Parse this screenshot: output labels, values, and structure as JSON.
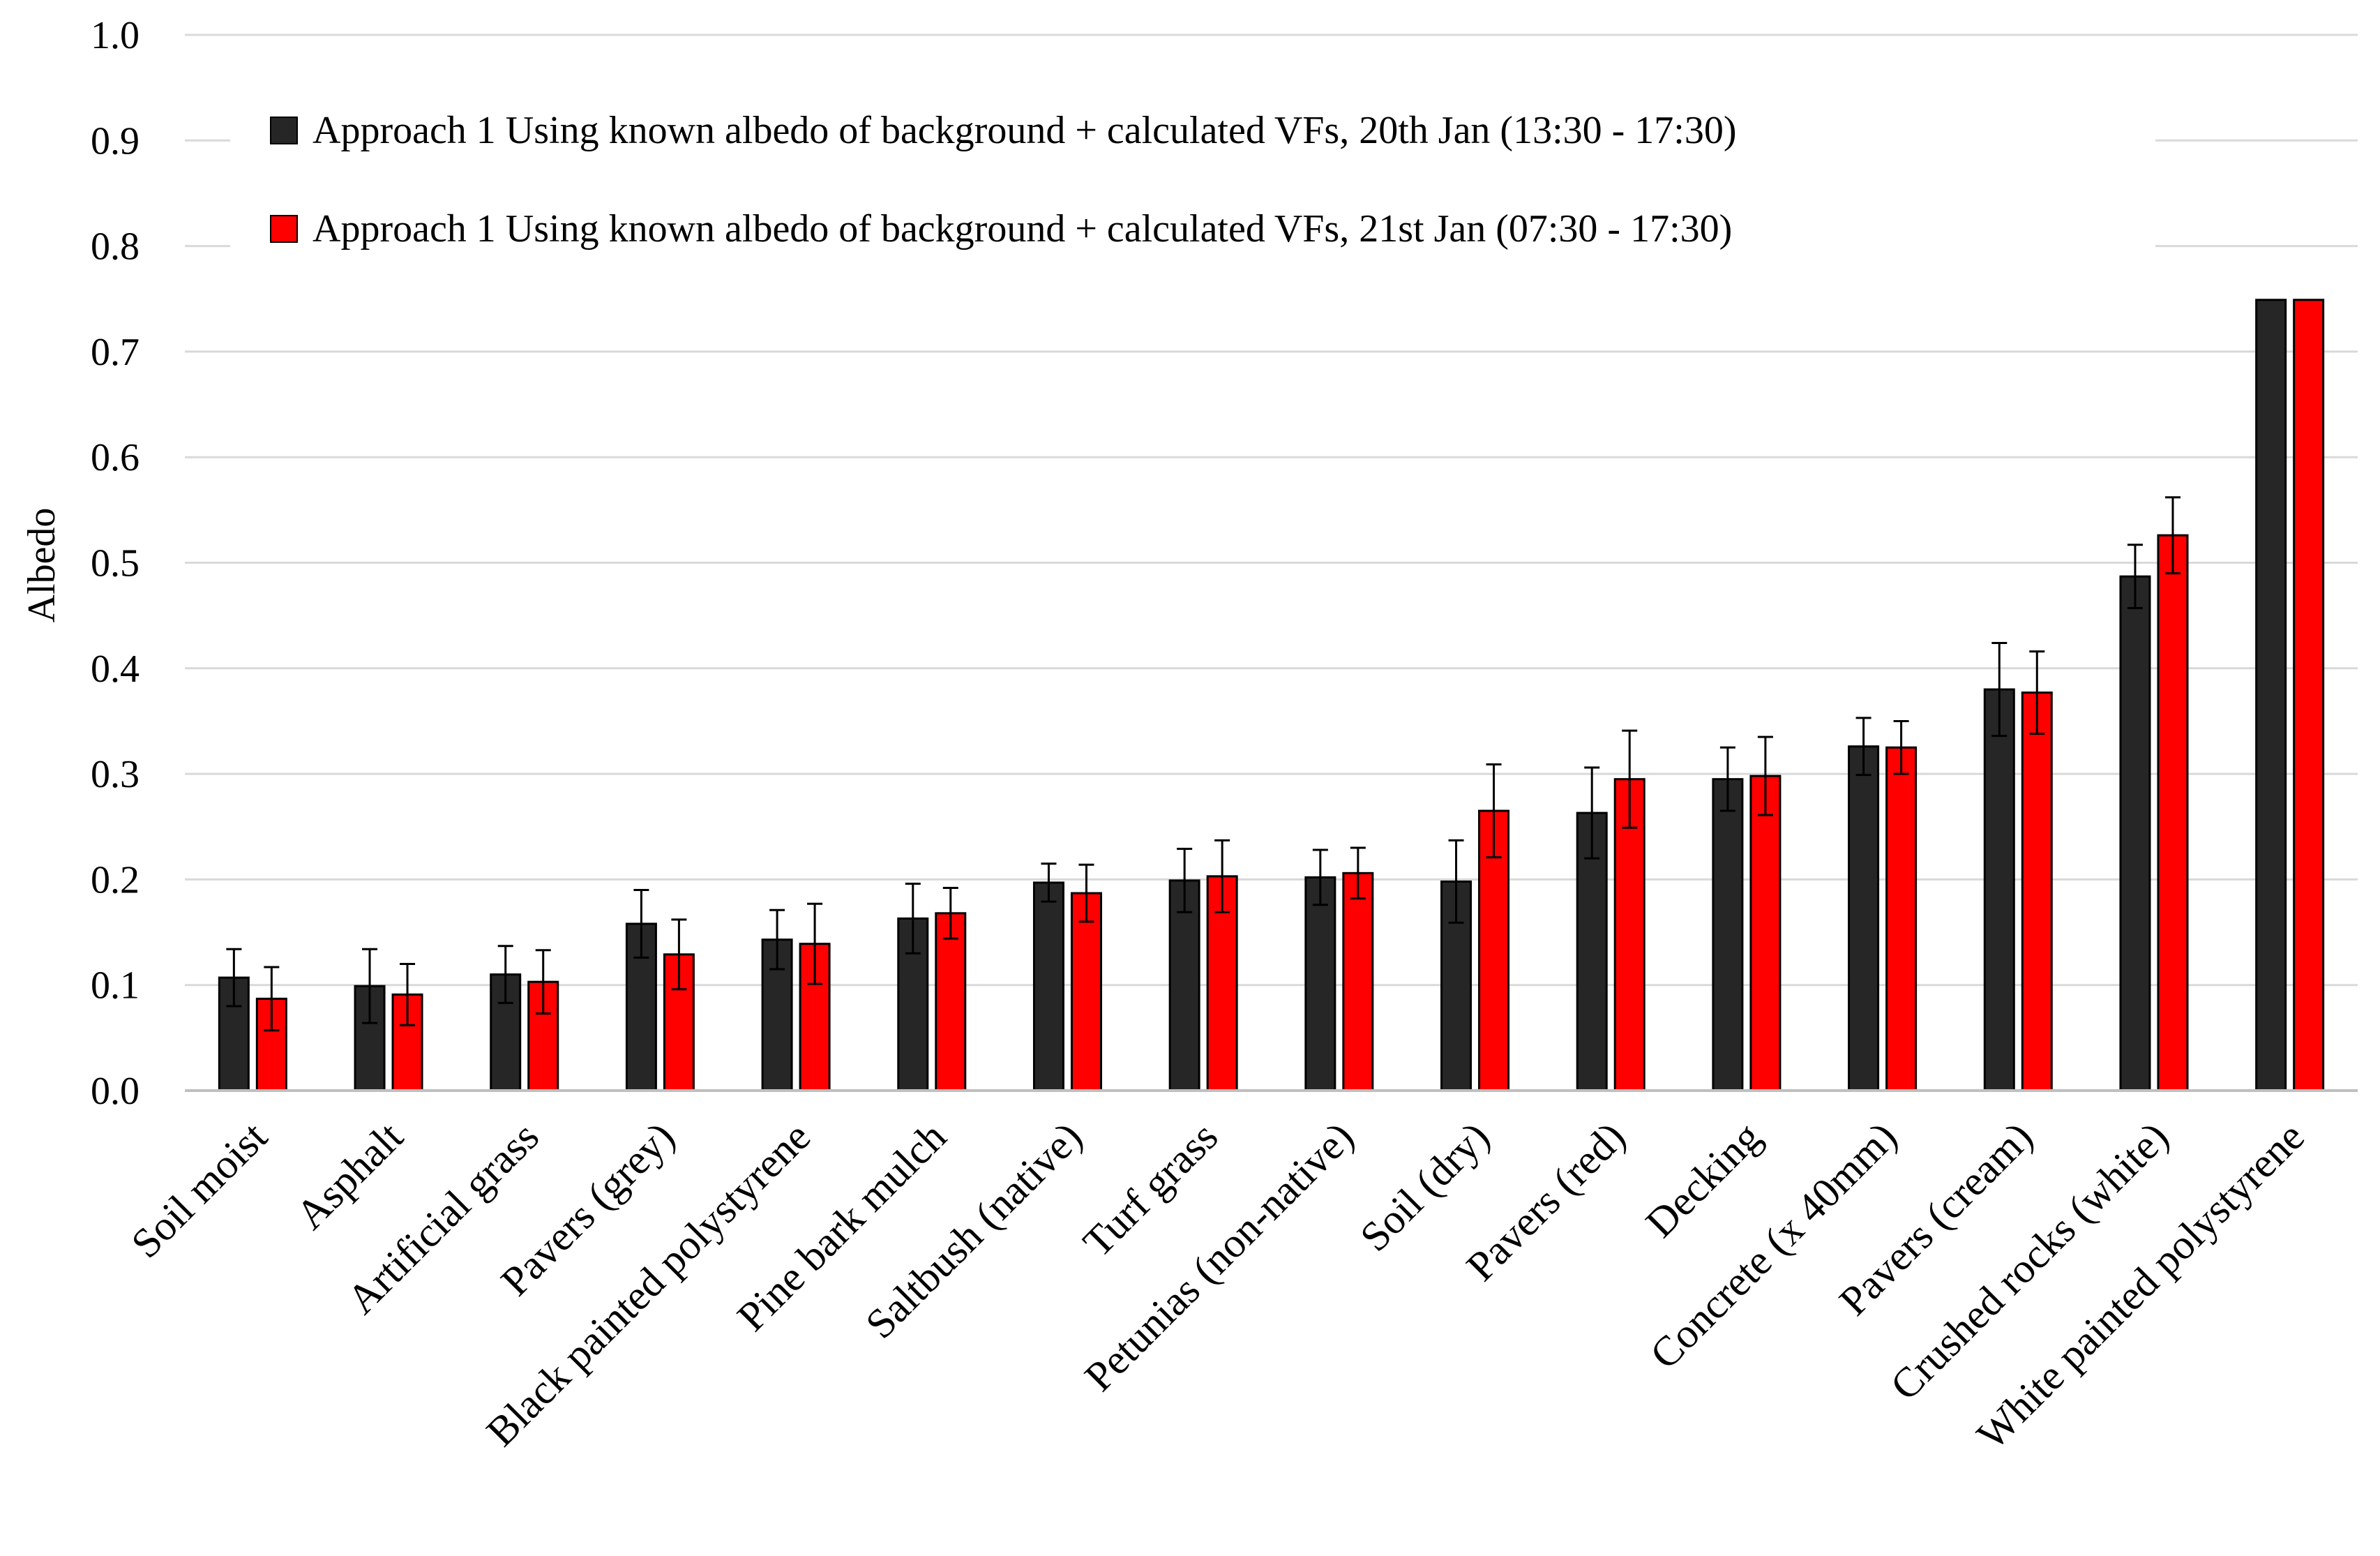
{
  "chart_data": {
    "type": "bar",
    "title": "",
    "xlabel": "",
    "ylabel": "Albedo",
    "ylim": [
      0,
      1.0
    ],
    "yticks": [
      "0.0",
      "0.1",
      "0.2",
      "0.3",
      "0.4",
      "0.5",
      "0.6",
      "0.7",
      "0.8",
      "0.9",
      "1.0"
    ],
    "grid": "horizontal",
    "legend_position": "top",
    "categories": [
      "Soil moist",
      "Asphalt",
      "Artificial grass",
      "Pavers (grey)",
      "Black painted polystyrene",
      "Pine bark mulch",
      "Saltbush (native)",
      "Turf grass",
      "Petunias (non-native)",
      "Soil (dry)",
      "Pavers (red)",
      "Decking",
      "Concrete (x 40mm)",
      "Pavers (cream)",
      "Crushed rocks (white)",
      "White painted polystyrene"
    ],
    "series": [
      {
        "name": "Approach 1 Using known albedo of background + calculated VFs, 20th Jan (13:30 - 17:30)",
        "color": "#262626",
        "values": [
          0.107,
          0.099,
          0.11,
          0.158,
          0.143,
          0.163,
          0.197,
          0.199,
          0.202,
          0.198,
          0.263,
          0.295,
          0.326,
          0.38,
          0.487,
          0.749
        ],
        "errors": [
          0.027,
          0.035,
          0.027,
          0.032,
          0.028,
          0.033,
          0.018,
          0.03,
          0.026,
          0.039,
          0.043,
          0.03,
          0.027,
          0.044,
          0.03,
          0.0
        ]
      },
      {
        "name": "Approach 1 Using known albedo of background + calculated VFs, 21st Jan (07:30 - 17:30)",
        "color": "#ff0000",
        "values": [
          0.087,
          0.091,
          0.103,
          0.129,
          0.139,
          0.168,
          0.187,
          0.203,
          0.206,
          0.265,
          0.295,
          0.298,
          0.325,
          0.377,
          0.526,
          0.749
        ],
        "errors": [
          0.03,
          0.029,
          0.03,
          0.033,
          0.038,
          0.024,
          0.027,
          0.034,
          0.024,
          0.044,
          0.046,
          0.037,
          0.025,
          0.039,
          0.036,
          0.0
        ]
      }
    ]
  }
}
